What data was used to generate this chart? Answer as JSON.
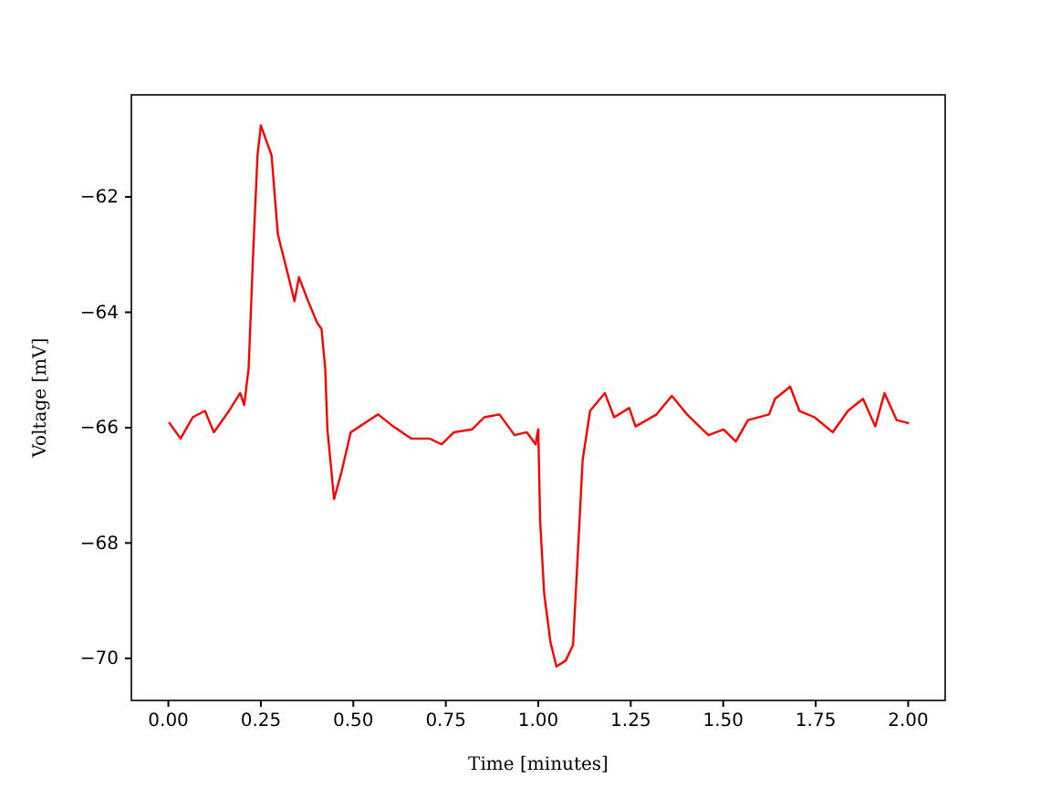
{
  "chart_data": {
    "type": "line",
    "xlabel": "Time [minutes]",
    "ylabel": "Voltage [mV]",
    "xlim": [
      -0.1,
      2.1
    ],
    "ylim": [
      -70.73,
      -60.23
    ],
    "xticks": [
      {
        "value": 0,
        "label": "0.00"
      },
      {
        "value": 0.25,
        "label": "0.25"
      },
      {
        "value": 0.5,
        "label": "0.50"
      },
      {
        "value": 0.75,
        "label": "0.75"
      },
      {
        "value": 1,
        "label": "1.00"
      },
      {
        "value": 1.25,
        "label": "1.25"
      },
      {
        "value": 1.5,
        "label": "1.50"
      },
      {
        "value": 1.75,
        "label": "1.75"
      },
      {
        "value": 2,
        "label": "2.00"
      }
    ],
    "yticks": [
      {
        "value": -70,
        "label": "−70"
      },
      {
        "value": -68,
        "label": "−68"
      },
      {
        "value": -66,
        "label": "−66"
      },
      {
        "value": -64,
        "label": "−64"
      },
      {
        "value": -62,
        "label": "−62"
      }
    ],
    "grid": false,
    "marker": "none",
    "line_style": "solid",
    "series": [
      {
        "color": "#ff0000",
        "x": [
          0.003,
          0.033,
          0.066,
          0.099,
          0.123,
          0.164,
          0.194,
          0.205,
          0.217,
          0.23,
          0.241,
          0.25,
          0.279,
          0.296,
          0.325,
          0.341,
          0.353,
          0.378,
          0.402,
          0.414,
          0.424,
          0.43,
          0.448,
          0.468,
          0.493,
          0.517,
          0.567,
          0.608,
          0.657,
          0.706,
          0.739,
          0.772,
          0.821,
          0.854,
          0.895,
          0.936,
          0.969,
          0.993,
          0.998,
          1.0,
          1.005,
          1.016,
          1.033,
          1.049,
          1.074,
          1.094,
          1.103,
          1.12,
          1.14,
          1.18,
          1.205,
          1.246,
          1.263,
          1.32,
          1.361,
          1.402,
          1.46,
          1.501,
          1.534,
          1.567,
          1.624,
          1.64,
          1.681,
          1.706,
          1.747,
          1.796,
          1.837,
          1.878,
          1.911,
          1.936,
          1.969,
          2.0
        ],
        "values": [
          -65.92,
          -66.19,
          -65.82,
          -65.71,
          -66.08,
          -65.71,
          -65.4,
          -65.61,
          -64.97,
          -62.86,
          -61.28,
          -60.76,
          -61.28,
          -62.65,
          -63.39,
          -63.81,
          -63.39,
          -63.81,
          -64.18,
          -64.29,
          -64.97,
          -66.03,
          -67.24,
          -66.77,
          -66.08,
          -65.98,
          -65.77,
          -65.98,
          -66.19,
          -66.19,
          -66.29,
          -66.08,
          -66.03,
          -65.82,
          -65.77,
          -66.13,
          -66.08,
          -66.29,
          -66.08,
          -66.03,
          -67.61,
          -68.88,
          -69.72,
          -70.14,
          -70.04,
          -69.77,
          -68.67,
          -66.56,
          -65.71,
          -65.4,
          -65.82,
          -65.66,
          -65.98,
          -65.77,
          -65.45,
          -65.77,
          -66.13,
          -66.03,
          -66.24,
          -65.87,
          -65.77,
          -65.5,
          -65.29,
          -65.71,
          -65.82,
          -66.08,
          -65.71,
          -65.5,
          -65.98,
          -65.4,
          -65.87,
          -65.92
        ]
      }
    ]
  }
}
